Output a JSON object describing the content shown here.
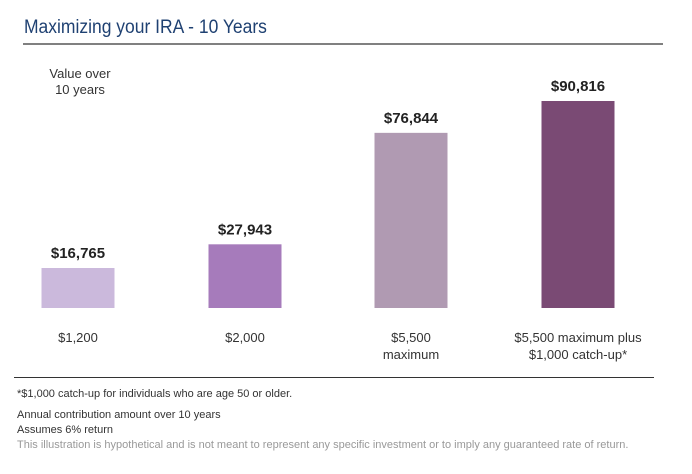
{
  "chart_data": {
    "type": "bar",
    "title": "Maximizing your IRA - 10 Years",
    "ylabel": [
      "Value over",
      "10 years"
    ],
    "categories": [
      [
        "$1,200"
      ],
      [
        "$2,000"
      ],
      [
        "$5,500",
        "maximum"
      ],
      [
        "$5,500 maximum plus",
        "$1,000 catch-up*"
      ]
    ],
    "values": [
      16765,
      27943,
      76844,
      90816
    ],
    "value_labels": [
      "$16,765",
      "$27,943",
      "$76,844",
      "$90,816"
    ],
    "colors": [
      "#cbb9dc",
      "#a67bbb",
      "#b09ab2",
      "#7a4a74"
    ],
    "ylim": [
      0,
      90816
    ],
    "grid": false
  },
  "footnotes": {
    "catchup": "*$1,000 catch-up for individuals who are age 50 or older.",
    "annual": "Annual contribution amount over 10 years",
    "return": "Assumes 6% return",
    "disclaimer": "This illustration is hypothetical and is not meant to represent any specific investment or to imply any guaranteed rate of return."
  }
}
